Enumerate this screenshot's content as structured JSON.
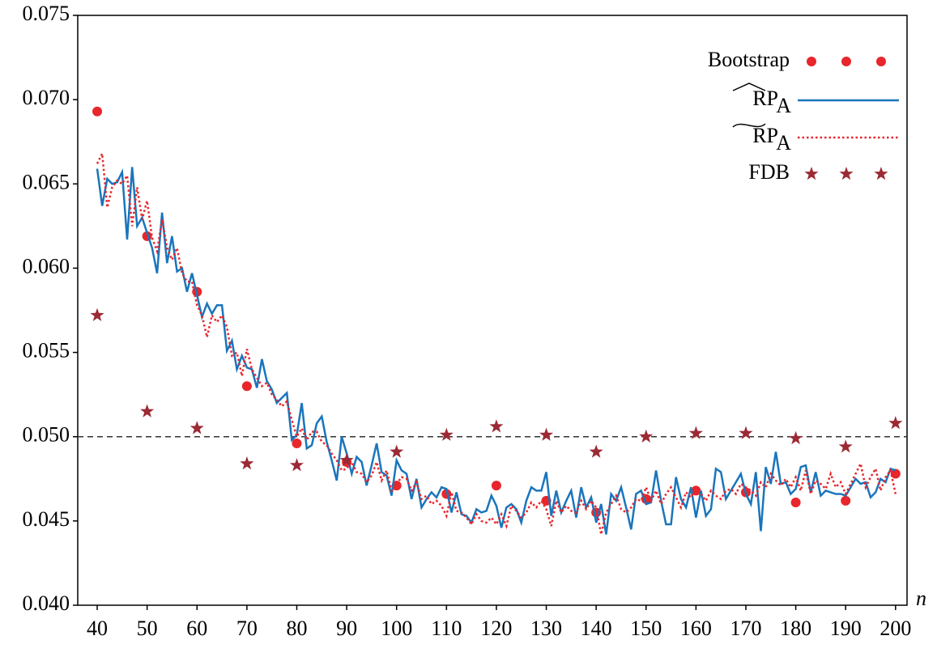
{
  "chart_data": {
    "type": "line",
    "x_label": "n",
    "xlim": [
      36.1,
      202.3
    ],
    "ylim": [
      0.04,
      0.075
    ],
    "xticks": [
      40,
      50,
      60,
      70,
      80,
      90,
      100,
      110,
      120,
      130,
      140,
      150,
      160,
      170,
      180,
      190,
      200
    ],
    "yticks": [
      {
        "value": 0.04,
        "label": "0.040"
      },
      {
        "value": 0.045,
        "label": "0.045"
      },
      {
        "value": 0.05,
        "label": "0.050"
      },
      {
        "value": 0.055,
        "label": "0.055"
      },
      {
        "value": 0.06,
        "label": "0.060"
      },
      {
        "value": 0.065,
        "label": "0.065"
      },
      {
        "value": 0.07,
        "label": "0.070"
      },
      {
        "value": 0.075,
        "label": "0.075"
      }
    ],
    "reference_line": 0.05,
    "legend": "upper right",
    "x": [
      40,
      41,
      42,
      43,
      44,
      45,
      46,
      47,
      48,
      49,
      50,
      51,
      52,
      53,
      54,
      55,
      56,
      57,
      58,
      59,
      60,
      61,
      62,
      63,
      64,
      65,
      66,
      67,
      68,
      69,
      70,
      71,
      72,
      73,
      74,
      75,
      76,
      77,
      78,
      79,
      80,
      81,
      82,
      83,
      84,
      85,
      86,
      87,
      88,
      89,
      90,
      91,
      92,
      93,
      94,
      95,
      96,
      97,
      98,
      99,
      100,
      101,
      102,
      103,
      104,
      105,
      106,
      107,
      108,
      109,
      110,
      111,
      112,
      113,
      114,
      115,
      116,
      117,
      118,
      119,
      120,
      121,
      122,
      123,
      124,
      125,
      126,
      127,
      128,
      129,
      130,
      131,
      132,
      133,
      134,
      135,
      136,
      137,
      138,
      139,
      140,
      141,
      142,
      143,
      144,
      145,
      146,
      147,
      148,
      149,
      150,
      151,
      152,
      153,
      154,
      155,
      156,
      157,
      158,
      159,
      160,
      161,
      162,
      163,
      164,
      165,
      166,
      167,
      168,
      169,
      170,
      171,
      172,
      173,
      174,
      175,
      176,
      177,
      178,
      179,
      180,
      181,
      182,
      183,
      184,
      185,
      186,
      187,
      188,
      189,
      190,
      191,
      192,
      193,
      194,
      195,
      196,
      197,
      198,
      199,
      200
    ],
    "series": [
      {
        "name": "Bootstrap",
        "color": "#e8262b",
        "marker": "circle",
        "linestyle": "none",
        "x": [
          40,
          50,
          60,
          70,
          80,
          90,
          100,
          110,
          120,
          130,
          140,
          150,
          160,
          170,
          180,
          190,
          200
        ],
        "values": [
          0.0693,
          0.0619,
          0.0586,
          0.053,
          0.0496,
          0.0485,
          0.0471,
          0.0466,
          0.0471,
          0.0462,
          0.0455,
          0.0463,
          0.0468,
          0.0467,
          0.0461,
          0.0462,
          0.0478
        ]
      },
      {
        "name": "RP",
        "subscript": "A",
        "accent": "hat",
        "color": "#1a75bc",
        "marker": "none",
        "linestyle": "solid",
        "values": [
          0.0659,
          0.0637,
          0.0653,
          0.065,
          0.0651,
          0.0657,
          0.0617,
          0.066,
          0.0625,
          0.063,
          0.0621,
          0.0612,
          0.0597,
          0.0633,
          0.0603,
          0.0619,
          0.0598,
          0.06,
          0.0586,
          0.0597,
          0.0584,
          0.0571,
          0.0579,
          0.0573,
          0.0578,
          0.0578,
          0.0551,
          0.0557,
          0.054,
          0.0548,
          0.0541,
          0.054,
          0.0529,
          0.0546,
          0.0533,
          0.0528,
          0.052,
          0.0523,
          0.0526,
          0.0498,
          0.0501,
          0.052,
          0.0493,
          0.0495,
          0.0508,
          0.0512,
          0.0497,
          0.0486,
          0.0474,
          0.05,
          0.049,
          0.0478,
          0.0488,
          0.0485,
          0.0471,
          0.0483,
          0.0496,
          0.0479,
          0.0477,
          0.0465,
          0.0486,
          0.048,
          0.0478,
          0.0463,
          0.0475,
          0.0458,
          0.0463,
          0.0467,
          0.0464,
          0.047,
          0.0469,
          0.0455,
          0.0467,
          0.0454,
          0.0453,
          0.0449,
          0.0457,
          0.0455,
          0.0456,
          0.0465,
          0.0459,
          0.0446,
          0.0458,
          0.046,
          0.0457,
          0.0449,
          0.0462,
          0.047,
          0.0468,
          0.0468,
          0.0479,
          0.0453,
          0.0468,
          0.0455,
          0.0462,
          0.0468,
          0.0452,
          0.047,
          0.0458,
          0.0464,
          0.0449,
          0.046,
          0.0442,
          0.0466,
          0.0462,
          0.047,
          0.0458,
          0.0445,
          0.0466,
          0.0468,
          0.046,
          0.0461,
          0.048,
          0.0462,
          0.0448,
          0.0448,
          0.0476,
          0.0463,
          0.0458,
          0.047,
          0.0452,
          0.0468,
          0.0453,
          0.0457,
          0.0481,
          0.0479,
          0.0463,
          0.0468,
          0.0473,
          0.0478,
          0.0466,
          0.046,
          0.0479,
          0.0444,
          0.0482,
          0.0472,
          0.0491,
          0.0472,
          0.0473,
          0.0466,
          0.0469,
          0.0482,
          0.0483,
          0.0467,
          0.0479,
          0.0465,
          0.0468,
          0.0467,
          0.0466,
          0.0466,
          0.0465,
          0.047,
          0.0475,
          0.0472,
          0.0473,
          0.0464,
          0.0467,
          0.0475,
          0.0473,
          0.0481,
          0.048
        ]
      },
      {
        "name": "RP",
        "subscript": "A",
        "accent": "tilde",
        "color": "#e8262b",
        "marker": "none",
        "linestyle": "dotted",
        "values": [
          0.0662,
          0.0668,
          0.0636,
          0.0648,
          0.0652,
          0.065,
          0.0655,
          0.0625,
          0.0648,
          0.0629,
          0.064,
          0.0618,
          0.061,
          0.0629,
          0.0612,
          0.0605,
          0.0612,
          0.0597,
          0.0592,
          0.0592,
          0.0578,
          0.0572,
          0.0559,
          0.0572,
          0.0568,
          0.0572,
          0.0565,
          0.0548,
          0.055,
          0.0536,
          0.0552,
          0.054,
          0.0535,
          0.053,
          0.0532,
          0.0525,
          0.0522,
          0.0518,
          0.0521,
          0.051,
          0.05,
          0.0505,
          0.0498,
          0.0503,
          0.0503,
          0.0497,
          0.0495,
          0.049,
          0.0486,
          0.048,
          0.0481,
          0.0485,
          0.0479,
          0.0478,
          0.0473,
          0.0477,
          0.0485,
          0.0474,
          0.048,
          0.0468,
          0.0472,
          0.0476,
          0.0475,
          0.0468,
          0.0473,
          0.0463,
          0.0465,
          0.046,
          0.0462,
          0.0459,
          0.0453,
          0.0467,
          0.0456,
          0.0455,
          0.0452,
          0.0448,
          0.0454,
          0.045,
          0.0449,
          0.0452,
          0.0448,
          0.0454,
          0.0447,
          0.0459,
          0.0456,
          0.0452,
          0.0455,
          0.0461,
          0.0458,
          0.0462,
          0.0457,
          0.0447,
          0.0462,
          0.0455,
          0.0459,
          0.0456,
          0.0455,
          0.0462,
          0.0457,
          0.0462,
          0.0458,
          0.0442,
          0.0455,
          0.046,
          0.0465,
          0.0457,
          0.0455,
          0.0458,
          0.0463,
          0.0462,
          0.047,
          0.0462,
          0.0468,
          0.046,
          0.0466,
          0.047,
          0.0464,
          0.0458,
          0.0467,
          0.0464,
          0.047,
          0.0466,
          0.0462,
          0.0468,
          0.0465,
          0.0463,
          0.0468,
          0.0469,
          0.0466,
          0.0472,
          0.047,
          0.0468,
          0.0465,
          0.0473,
          0.047,
          0.0478,
          0.0474,
          0.0471,
          0.0475,
          0.047,
          0.0476,
          0.0468,
          0.048,
          0.0466,
          0.0474,
          0.0472,
          0.0469,
          0.0478,
          0.047,
          0.0473,
          0.0466,
          0.0472,
          0.0478,
          0.0484,
          0.047,
          0.0476,
          0.0481,
          0.0468,
          0.0476,
          0.048,
          0.0466
        ]
      },
      {
        "name": "FDB",
        "color": "#9b2a35",
        "marker": "star",
        "linestyle": "none",
        "x": [
          40,
          50,
          60,
          70,
          80,
          90,
          100,
          110,
          120,
          130,
          140,
          150,
          160,
          170,
          180,
          190,
          200
        ],
        "values": [
          0.0572,
          0.0515,
          0.0505,
          0.0484,
          0.0483,
          0.0486,
          0.0491,
          0.0501,
          0.0506,
          0.0501,
          0.0491,
          0.05,
          0.0502,
          0.0502,
          0.0499,
          0.0494,
          0.0508
        ]
      }
    ]
  }
}
